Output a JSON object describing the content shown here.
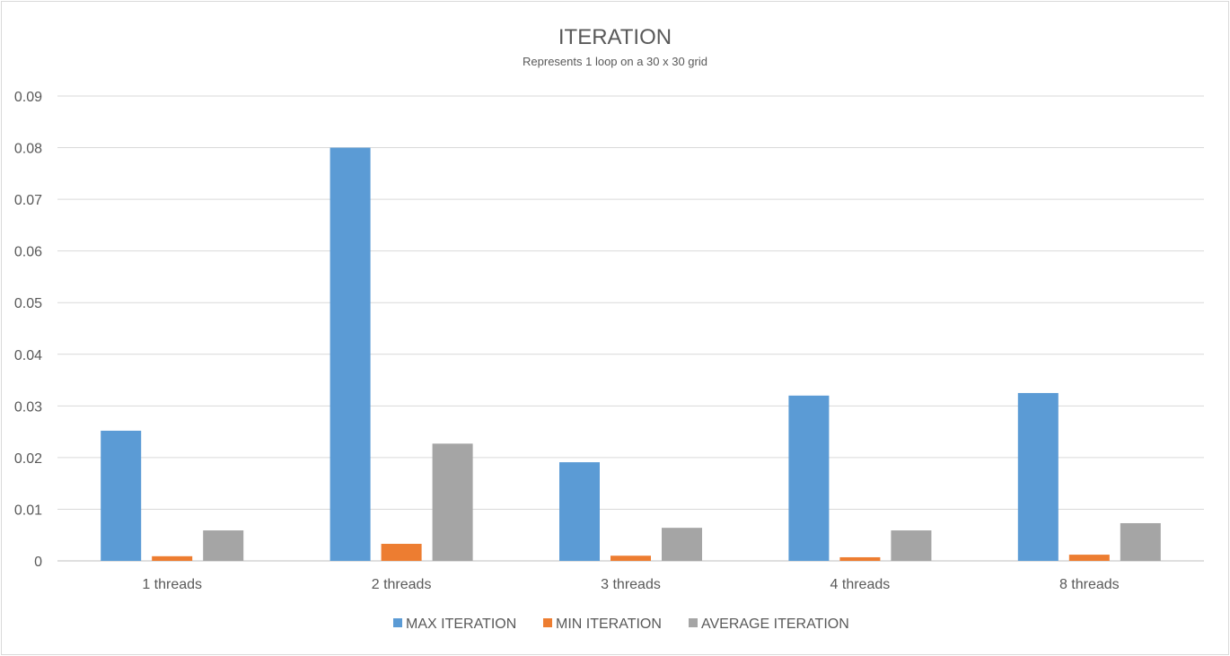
{
  "chart_data": {
    "type": "bar",
    "title": "ITERATION",
    "subtitle": "Represents 1 loop on a 30 x 30 grid",
    "xlabel": "",
    "ylabel": "",
    "categories": [
      "1 threads",
      "2 threads",
      "3 threads",
      "4 threads",
      "8 threads"
    ],
    "series": [
      {
        "name": "MAX ITERATION",
        "color": "#5b9bd5",
        "values": [
          0.0252,
          0.08,
          0.0191,
          0.032,
          0.0325
        ]
      },
      {
        "name": "MIN ITERATION",
        "color": "#ed7d31",
        "values": [
          0.0009,
          0.0033,
          0.001,
          0.0007,
          0.0012
        ]
      },
      {
        "name": "AVERAGE ITERATION",
        "color": "#a5a5a5",
        "values": [
          0.0059,
          0.0227,
          0.0064,
          0.0059,
          0.0073
        ]
      }
    ],
    "ylim": [
      0,
      0.09
    ],
    "yticks": [
      "0",
      "0.01",
      "0.02",
      "0.03",
      "0.04",
      "0.05",
      "0.06",
      "0.07",
      "0.08",
      "0.09"
    ],
    "grid": true,
    "legend": "bottom"
  }
}
